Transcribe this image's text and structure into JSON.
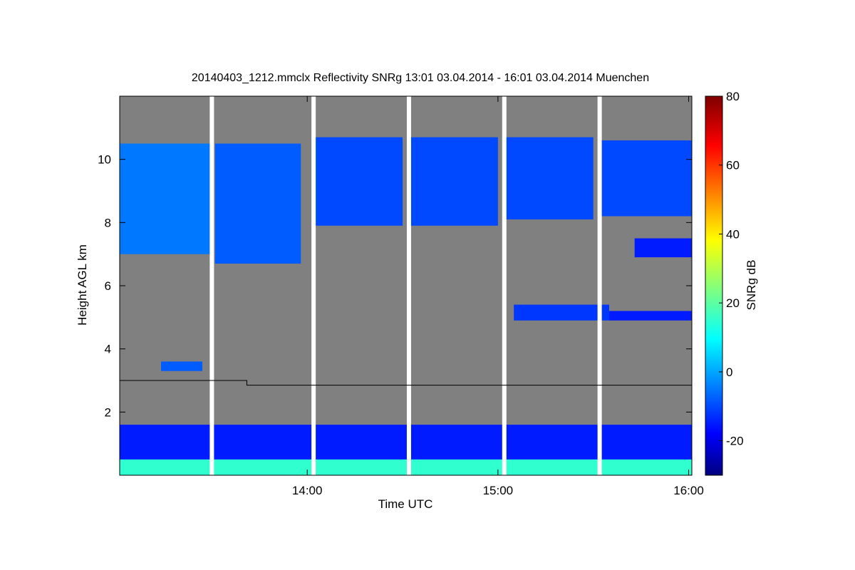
{
  "chart_data": {
    "type": "heatmap",
    "title": "20140403_1212.mmclx Reflectivity SNRg   13:01 03.04.2014 - 16:01 03.04.2014 Muenchen",
    "xlabel": "Time UTC",
    "ylabel": "Height AGL km",
    "xlim": [
      "13:01",
      "16:01"
    ],
    "ylim": [
      0,
      12
    ],
    "x_ticks": [
      "14:00",
      "15:00",
      "16:00"
    ],
    "y_ticks": [
      2,
      4,
      6,
      8,
      10
    ],
    "colorbar": {
      "label": "SNRg dB",
      "range": [
        -30,
        80
      ],
      "ticks": [
        -20,
        0,
        20,
        40,
        60,
        80
      ],
      "colormap": "jet"
    },
    "colors": {
      "background": "#808080",
      "gap": "#ffffff"
    },
    "gaps_utc": [
      "13:30",
      "14:02",
      "14:32",
      "15:02",
      "15:32"
    ],
    "features": [
      {
        "start": "13:01",
        "end": "13:30",
        "base_km": 7.0,
        "top_km": 10.5,
        "snr_db": -5
      },
      {
        "start": "13:31",
        "end": "13:58",
        "base_km": 6.7,
        "top_km": 10.5,
        "snr_db": -8
      },
      {
        "start": "14:02",
        "end": "14:30",
        "base_km": 7.9,
        "top_km": 10.7,
        "snr_db": -10
      },
      {
        "start": "14:32",
        "end": "15:00",
        "base_km": 7.9,
        "top_km": 10.7,
        "snr_db": -10
      },
      {
        "start": "15:02",
        "end": "15:30",
        "base_km": 8.1,
        "top_km": 10.7,
        "snr_db": -10
      },
      {
        "start": "15:32",
        "end": "16:01",
        "base_km": 8.2,
        "top_km": 10.6,
        "snr_db": -10
      },
      {
        "start": "15:05",
        "end": "15:35",
        "base_km": 4.9,
        "top_km": 5.4,
        "snr_db": -12
      },
      {
        "start": "15:35",
        "end": "16:01",
        "base_km": 4.9,
        "top_km": 5.2,
        "snr_db": -15
      },
      {
        "start": "15:43",
        "end": "16:01",
        "base_km": 6.9,
        "top_km": 7.5,
        "snr_db": -15
      },
      {
        "start": "13:14",
        "end": "13:27",
        "base_km": 3.3,
        "top_km": 3.6,
        "snr_db": -8
      },
      {
        "start": "13:01",
        "end": "16:01",
        "base_km": 0.0,
        "top_km": 1.6,
        "snr_db": -15
      },
      {
        "start": "13:01",
        "end": "16:01",
        "base_km": 0.0,
        "top_km": 0.5,
        "snr_db": 15
      }
    ],
    "reference_line": [
      {
        "time": "13:01",
        "height_km": 3.0
      },
      {
        "time": "13:41",
        "height_km": 3.0
      },
      {
        "time": "13:41",
        "height_km": 2.85
      },
      {
        "time": "16:01",
        "height_km": 2.85
      }
    ]
  }
}
